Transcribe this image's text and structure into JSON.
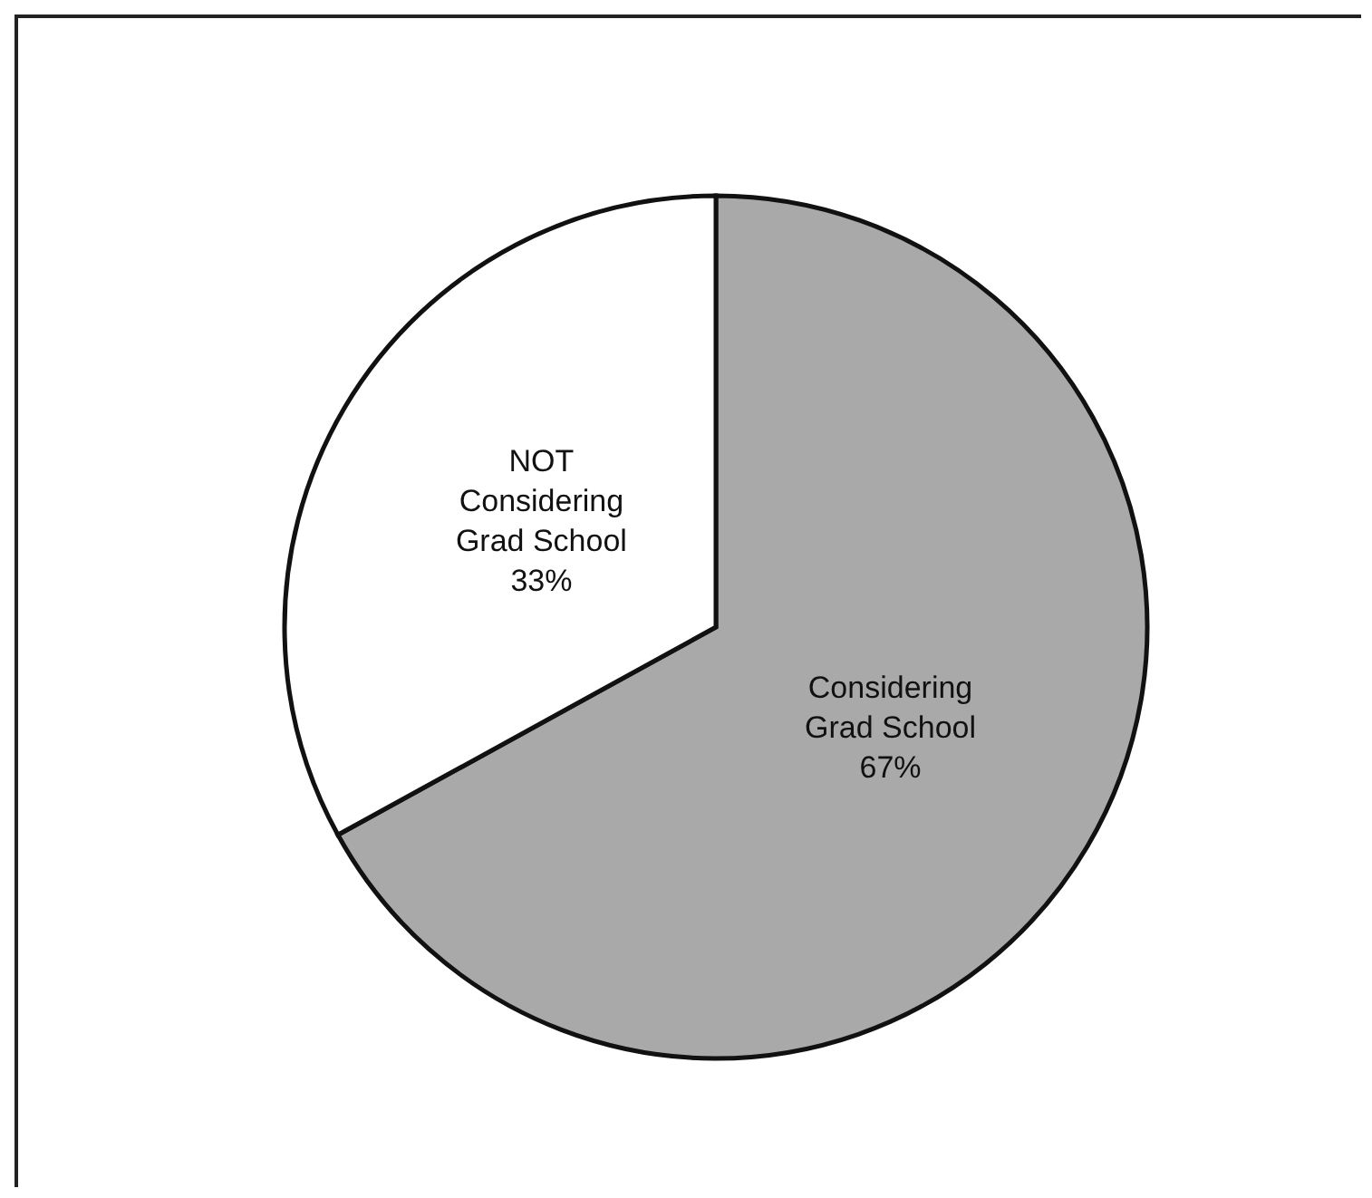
{
  "chart_data": {
    "type": "pie",
    "categories": [
      "Considering Grad School",
      "NOT Considering Grad School"
    ],
    "values": [
      67,
      33
    ],
    "colors": [
      "#a9a9a9",
      "#ffffff"
    ],
    "value_labels": [
      "67%",
      "33%"
    ]
  }
}
